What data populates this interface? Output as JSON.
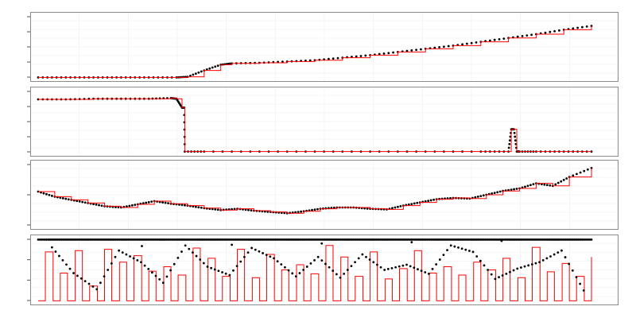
{
  "colors": {
    "background": "#ffffff",
    "panel_border": "#8c8c8c",
    "grid": "#ececec",
    "points": "#000000",
    "step_line": "#ff0000"
  },
  "chart_data": [
    {
      "type": "line",
      "title": "",
      "xlabel": "",
      "ylabel": "",
      "grid": true,
      "legend": "none",
      "xlim": [
        0,
        100
      ],
      "ylim": [
        0,
        100
      ],
      "series": [
        {
          "style": "points+step",
          "x": [
            0,
            5,
            10,
            15,
            20,
            25,
            27,
            30,
            33,
            35,
            40,
            45,
            50,
            55,
            60,
            65,
            70,
            75,
            80,
            85,
            90,
            95,
            100
          ],
          "y": [
            2,
            2,
            2,
            2,
            2,
            2,
            3,
            13,
            22,
            24,
            25,
            27,
            29,
            33,
            37,
            42,
            47,
            52,
            58,
            64,
            70,
            77,
            83
          ]
        }
      ]
    },
    {
      "type": "line",
      "title": "",
      "xlabel": "",
      "ylabel": "",
      "grid": true,
      "legend": "none",
      "xlim": [
        0,
        100
      ],
      "ylim": [
        0,
        100
      ],
      "series": [
        {
          "style": "points+step",
          "x": [
            0,
            5,
            10,
            15,
            20,
            24,
            25,
            26,
            26.4,
            26.5,
            30,
            40,
            50,
            60,
            70,
            80,
            85,
            85.5,
            86,
            86.5,
            87,
            90,
            95,
            100
          ],
          "y": [
            85,
            85,
            86,
            86,
            86,
            87,
            86,
            72,
            72,
            3,
            3,
            3,
            3,
            3,
            3,
            3,
            3,
            38,
            38,
            3,
            3,
            3,
            3,
            3
          ]
        }
      ]
    },
    {
      "type": "line",
      "title": "",
      "xlabel": "",
      "ylabel": "",
      "grid": true,
      "legend": "none",
      "xlim": [
        0,
        100
      ],
      "ylim": [
        0,
        100
      ],
      "series": [
        {
          "style": "points+step",
          "x": [
            0,
            3,
            6,
            9,
            12,
            15,
            18,
            21,
            24,
            27,
            30,
            33,
            36,
            39,
            42,
            45,
            48,
            51,
            54,
            57,
            60,
            63,
            66,
            69,
            72,
            75,
            78,
            81,
            84,
            87,
            90,
            93,
            96,
            100
          ],
          "y": [
            55,
            47,
            42,
            37,
            32,
            30,
            35,
            40,
            36,
            33,
            29,
            26,
            28,
            25,
            23,
            21,
            24,
            28,
            30,
            30,
            28,
            27,
            33,
            38,
            43,
            45,
            44,
            50,
            56,
            60,
            68,
            64,
            78,
            92
          ]
        }
      ]
    },
    {
      "type": "line",
      "title": "",
      "xlabel": "",
      "ylabel": "",
      "grid": true,
      "legend": "none",
      "xlim": [
        0,
        100
      ],
      "ylim": [
        0,
        100
      ],
      "series": [
        {
          "style": "step",
          "x": [
            0,
            0.9,
            1.3,
            2.3,
            2.7,
            3.6,
            4.0,
            4.9,
            5.3,
            6.3,
            6.7,
            7.6,
            8.0,
            8.9,
            9.3,
            10.3,
            10.7,
            11.6,
            12.0,
            12.9,
            13.3,
            14.3,
            14.7,
            15.6,
            16.0,
            16.9,
            17.3,
            18.3,
            18.7,
            19.6,
            20.0,
            20.9,
            21.3,
            22.3,
            22.7,
            23.6,
            24.0,
            24.9,
            25.3,
            26.3,
            26.7,
            27.6,
            28.0,
            28.9,
            29.3,
            30.3,
            30.7,
            31.6,
            32.0,
            32.9,
            33.3,
            34.3,
            34.7,
            35.6,
            36.0,
            36.9,
            37.3,
            38.3,
            38.7,
            39.6,
            40.0,
            40.9,
            41.3,
            42.3,
            42.7,
            43.6,
            44.0,
            44.9,
            45.3,
            46.3,
            46.7,
            47.6,
            48.0,
            48.9,
            49.3,
            50.3,
            50.7,
            51.6,
            52.0,
            52.9,
            53.3,
            54.3,
            54.7,
            55.6,
            56.0,
            56.9,
            57.3,
            58.3,
            58.7,
            59.6,
            60.0,
            60.9,
            61.3,
            62.3,
            62.7,
            63.6,
            64.0,
            64.9,
            65.3,
            66.3,
            66.7,
            67.6,
            68.0,
            68.9,
            69.3,
            70.3,
            70.7,
            71.6,
            72.0,
            72.9,
            73.3,
            74.3,
            74.7,
            75.6,
            76.0,
            76.9,
            77.3,
            78.3,
            78.7,
            79.6,
            80.0,
            80.9,
            81.3,
            82.3,
            82.7,
            83.6,
            84.0,
            84.9,
            85.3,
            86.3,
            86.7,
            87.6,
            88.0,
            88.9,
            89.3,
            90.3,
            90.7,
            91.6,
            92.0,
            92.9,
            93.3,
            94.3,
            94.7,
            95.6,
            96.0,
            96.9,
            97.3,
            98.3,
            98.7,
            99.6,
            100
          ],
          "y": [
            2,
            2,
            78,
            78,
            2,
            2,
            45,
            45,
            2,
            2,
            80,
            80,
            2,
            2,
            25,
            25,
            2,
            2,
            82,
            82,
            2,
            2,
            62,
            62,
            2,
            2,
            72,
            72,
            2,
            2,
            48,
            48,
            2,
            2,
            55,
            55,
            2,
            2,
            42,
            42,
            2,
            2,
            84,
            84,
            2,
            2,
            68,
            68,
            2,
            2,
            40,
            40,
            2,
            2,
            82,
            82,
            2,
            2,
            38,
            38,
            2,
            2,
            74,
            74,
            2,
            2,
            50,
            50,
            2,
            2,
            58,
            58,
            2,
            2,
            44,
            44,
            2,
            2,
            88,
            88,
            2,
            2,
            70,
            70,
            2,
            2,
            40,
            40,
            2,
            2,
            78,
            78,
            2,
            2,
            36,
            36,
            2,
            2,
            52,
            52,
            2,
            2,
            80,
            80,
            2,
            2,
            45,
            45,
            2,
            2,
            55,
            55,
            2,
            2,
            42,
            42,
            2,
            2,
            62,
            62,
            2,
            2,
            50,
            50,
            2,
            2,
            68,
            68,
            2,
            2,
            38,
            38,
            2,
            2,
            85,
            85,
            2,
            2,
            47,
            47,
            2,
            2,
            60,
            60,
            2,
            2,
            40,
            40,
            2,
            2,
            70
          ]
        },
        {
          "style": "points",
          "x": [
            0,
            1.8,
            3.1,
            4.5,
            5.8,
            7.1,
            8.5,
            9.8,
            11.2,
            12.5,
            13.8,
            15.2,
            16.5,
            17.9,
            19.2,
            20.5,
            21.9,
            23.2,
            24.6,
            25.9,
            27.2,
            28.6,
            29.9,
            31.3,
            32.6,
            33.9,
            35.3,
            36.6,
            38.0,
            39.3,
            40.6,
            42.0,
            43.3,
            44.7,
            46.0,
            47.3,
            48.7,
            50.0,
            51.4,
            52.7,
            54.0,
            55.4,
            56.7,
            58.1,
            59.4,
            60.7,
            62.1,
            63.4,
            64.8,
            66.1,
            67.4,
            68.8,
            70.1,
            71.5,
            72.8,
            74.1,
            75.5,
            76.8,
            78.2,
            79.5,
            80.8,
            82.2,
            83.5,
            84.9,
            86.2,
            87.5,
            88.9,
            90.2,
            91.6,
            92.9,
            94.2,
            95.6,
            96.9,
            98.3,
            100,
            2.5,
            6.4,
            10.6,
            14.6,
            18.6,
            22.6,
            26.6,
            30.6,
            34.6,
            38.6,
            42.6,
            46.6,
            50.6,
            54.6,
            58.6,
            62.6,
            66.6,
            70.6,
            74.6,
            78.6,
            82.6,
            86.6,
            90.6,
            94.6,
            98.6
          ],
          "y": [
            97,
            97,
            97,
            97,
            97,
            97,
            97,
            97,
            97,
            97,
            97,
            97,
            97,
            97,
            97,
            97,
            97,
            97,
            97,
            97,
            97,
            97,
            97,
            97,
            97,
            97,
            97,
            97,
            97,
            97,
            97,
            97,
            97,
            97,
            97,
            97,
            97,
            97,
            97,
            97,
            97,
            97,
            97,
            97,
            97,
            97,
            97,
            97,
            97,
            97,
            97,
            97,
            97,
            97,
            97,
            97,
            97,
            97,
            97,
            97,
            97,
            97,
            97,
            97,
            97,
            97,
            97,
            97,
            97,
            97,
            97,
            97,
            97,
            97,
            97,
            85,
            45,
            20,
            80,
            62,
            30,
            88,
            55,
            42,
            84,
            68,
            40,
            70,
            38,
            74,
            50,
            58,
            44,
            88,
            78,
            36,
            52,
            62,
            80,
            18
          ]
        }
      ]
    }
  ]
}
